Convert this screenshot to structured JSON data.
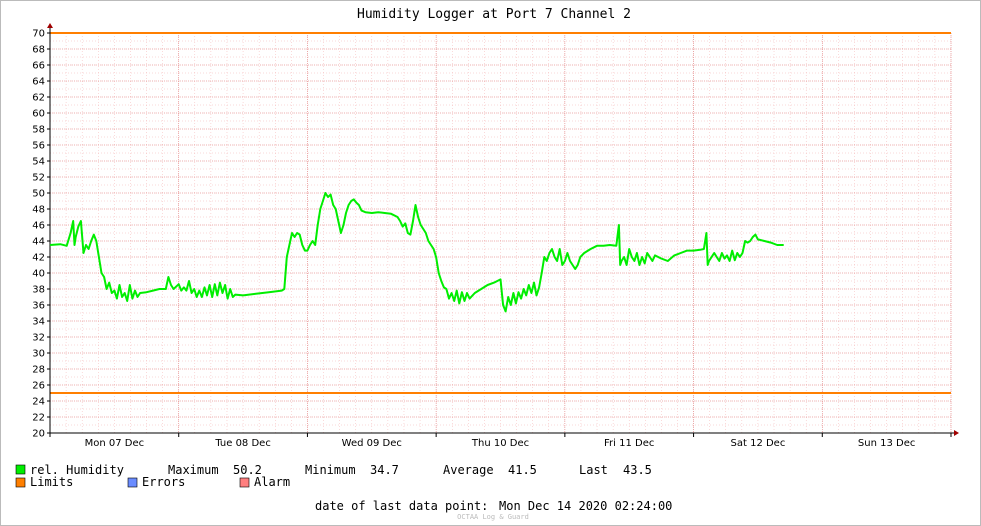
{
  "chart_data": {
    "type": "line",
    "title": "Humidity Logger at Port 7 Channel 2",
    "ylim": [
      20,
      70
    ],
    "y_ticks": [
      20,
      22,
      24,
      26,
      28,
      30,
      32,
      34,
      36,
      38,
      40,
      42,
      44,
      46,
      48,
      50,
      52,
      54,
      56,
      58,
      60,
      62,
      64,
      66,
      68,
      70
    ],
    "x_categories": [
      "Mon 07 Dec",
      "Tue 08 Dec",
      "Wed 09 Dec",
      "Thu 10 Dec",
      "Fri 11 Dec",
      "Sat 12 Dec",
      "Sun 13 Dec"
    ],
    "x_range_days": [
      0,
      7
    ],
    "grid": true,
    "limits": {
      "upper": 70,
      "lower": 25
    },
    "series": [
      {
        "name": "rel. Humidity",
        "color": "#00ee00",
        "points": [
          [
            0.0,
            43.5
          ],
          [
            0.08,
            43.6
          ],
          [
            0.13,
            43.4
          ],
          [
            0.16,
            45.0
          ],
          [
            0.18,
            46.5
          ],
          [
            0.19,
            43.5
          ],
          [
            0.2,
            44.5
          ],
          [
            0.22,
            45.8
          ],
          [
            0.24,
            46.5
          ],
          [
            0.26,
            42.5
          ],
          [
            0.28,
            43.5
          ],
          [
            0.3,
            43.0
          ],
          [
            0.32,
            44.0
          ],
          [
            0.34,
            44.8
          ],
          [
            0.36,
            44.0
          ],
          [
            0.38,
            42.0
          ],
          [
            0.4,
            40.0
          ],
          [
            0.42,
            39.5
          ],
          [
            0.44,
            38.0
          ],
          [
            0.46,
            38.8
          ],
          [
            0.48,
            37.5
          ],
          [
            0.5,
            37.8
          ],
          [
            0.52,
            36.8
          ],
          [
            0.54,
            38.5
          ],
          [
            0.56,
            37.0
          ],
          [
            0.58,
            37.5
          ],
          [
            0.6,
            36.5
          ],
          [
            0.62,
            38.5
          ],
          [
            0.64,
            36.8
          ],
          [
            0.66,
            37.8
          ],
          [
            0.68,
            37.0
          ],
          [
            0.7,
            37.5
          ],
          [
            0.75,
            37.6
          ],
          [
            0.8,
            37.8
          ],
          [
            0.85,
            38.0
          ],
          [
            0.9,
            38.0
          ],
          [
            0.92,
            39.5
          ],
          [
            0.94,
            38.5
          ],
          [
            0.96,
            38.0
          ],
          [
            1.0,
            38.6
          ],
          [
            1.02,
            37.8
          ],
          [
            1.04,
            38.2
          ],
          [
            1.06,
            37.8
          ],
          [
            1.08,
            39.0
          ],
          [
            1.1,
            37.5
          ],
          [
            1.12,
            38.0
          ],
          [
            1.14,
            37.0
          ],
          [
            1.16,
            37.8
          ],
          [
            1.18,
            37.0
          ],
          [
            1.2,
            38.2
          ],
          [
            1.22,
            37.2
          ],
          [
            1.24,
            38.5
          ],
          [
            1.26,
            37.0
          ],
          [
            1.28,
            38.6
          ],
          [
            1.3,
            37.2
          ],
          [
            1.32,
            38.8
          ],
          [
            1.34,
            37.5
          ],
          [
            1.36,
            38.5
          ],
          [
            1.38,
            36.8
          ],
          [
            1.4,
            38.0
          ],
          [
            1.42,
            37.0
          ],
          [
            1.44,
            37.3
          ],
          [
            1.5,
            37.2
          ],
          [
            1.6,
            37.4
          ],
          [
            1.7,
            37.6
          ],
          [
            1.8,
            37.8
          ],
          [
            1.82,
            38.0
          ],
          [
            1.84,
            42.0
          ],
          [
            1.86,
            43.5
          ],
          [
            1.88,
            45.0
          ],
          [
            1.9,
            44.5
          ],
          [
            1.92,
            45.0
          ],
          [
            1.94,
            44.8
          ],
          [
            1.96,
            43.5
          ],
          [
            1.98,
            42.8
          ],
          [
            2.0,
            42.8
          ],
          [
            2.02,
            43.5
          ],
          [
            2.04,
            44.0
          ],
          [
            2.06,
            43.5
          ],
          [
            2.08,
            46.0
          ],
          [
            2.1,
            48.0
          ],
          [
            2.12,
            49.0
          ],
          [
            2.14,
            50.0
          ],
          [
            2.16,
            49.5
          ],
          [
            2.18,
            49.8
          ],
          [
            2.2,
            48.5
          ],
          [
            2.22,
            48.0
          ],
          [
            2.24,
            46.5
          ],
          [
            2.26,
            45.0
          ],
          [
            2.28,
            46.0
          ],
          [
            2.3,
            47.5
          ],
          [
            2.32,
            48.5
          ],
          [
            2.34,
            49.0
          ],
          [
            2.36,
            49.2
          ],
          [
            2.38,
            48.8
          ],
          [
            2.4,
            48.5
          ],
          [
            2.42,
            47.8
          ],
          [
            2.45,
            47.6
          ],
          [
            2.5,
            47.5
          ],
          [
            2.55,
            47.6
          ],
          [
            2.6,
            47.5
          ],
          [
            2.65,
            47.4
          ],
          [
            2.7,
            47.0
          ],
          [
            2.72,
            46.5
          ],
          [
            2.74,
            45.8
          ],
          [
            2.76,
            46.2
          ],
          [
            2.78,
            45.0
          ],
          [
            2.8,
            44.8
          ],
          [
            2.82,
            46.5
          ],
          [
            2.84,
            48.5
          ],
          [
            2.86,
            47.0
          ],
          [
            2.88,
            46.0
          ],
          [
            2.9,
            45.5
          ],
          [
            2.92,
            45.0
          ],
          [
            2.94,
            44.0
          ],
          [
            2.96,
            43.5
          ],
          [
            2.98,
            43.0
          ],
          [
            3.0,
            42.0
          ],
          [
            3.02,
            40.0
          ],
          [
            3.04,
            39.0
          ],
          [
            3.06,
            38.2
          ],
          [
            3.08,
            38.0
          ],
          [
            3.1,
            36.8
          ],
          [
            3.12,
            37.5
          ],
          [
            3.14,
            36.5
          ],
          [
            3.16,
            37.8
          ],
          [
            3.18,
            36.2
          ],
          [
            3.2,
            37.6
          ],
          [
            3.22,
            36.5
          ],
          [
            3.24,
            37.5
          ],
          [
            3.26,
            36.8
          ],
          [
            3.3,
            37.5
          ],
          [
            3.35,
            38.0
          ],
          [
            3.4,
            38.5
          ],
          [
            3.45,
            38.8
          ],
          [
            3.5,
            39.2
          ],
          [
            3.52,
            36.0
          ],
          [
            3.54,
            35.2
          ],
          [
            3.56,
            37.0
          ],
          [
            3.58,
            36.0
          ],
          [
            3.6,
            37.5
          ],
          [
            3.62,
            36.2
          ],
          [
            3.64,
            37.6
          ],
          [
            3.66,
            36.8
          ],
          [
            3.68,
            38.0
          ],
          [
            3.7,
            37.2
          ],
          [
            3.72,
            38.5
          ],
          [
            3.74,
            37.5
          ],
          [
            3.76,
            38.8
          ],
          [
            3.78,
            37.2
          ],
          [
            3.8,
            38.2
          ],
          [
            3.82,
            40.0
          ],
          [
            3.84,
            42.0
          ],
          [
            3.86,
            41.5
          ],
          [
            3.88,
            42.5
          ],
          [
            3.9,
            43.0
          ],
          [
            3.92,
            42.0
          ],
          [
            3.94,
            41.5
          ],
          [
            3.96,
            43.0
          ],
          [
            3.98,
            41.0
          ],
          [
            4.0,
            41.5
          ],
          [
            4.02,
            42.5
          ],
          [
            4.04,
            41.5
          ],
          [
            4.06,
            41.0
          ],
          [
            4.08,
            40.5
          ],
          [
            4.1,
            41.0
          ],
          [
            4.12,
            42.0
          ],
          [
            4.15,
            42.5
          ],
          [
            4.2,
            43.0
          ],
          [
            4.25,
            43.4
          ],
          [
            4.3,
            43.4
          ],
          [
            4.35,
            43.5
          ],
          [
            4.4,
            43.4
          ],
          [
            4.42,
            46.0
          ],
          [
            4.43,
            41.0
          ],
          [
            4.44,
            41.5
          ],
          [
            4.46,
            42.0
          ],
          [
            4.48,
            41.0
          ],
          [
            4.5,
            43.0
          ],
          [
            4.52,
            42.0
          ],
          [
            4.54,
            41.5
          ],
          [
            4.56,
            42.5
          ],
          [
            4.58,
            41.0
          ],
          [
            4.6,
            42.0
          ],
          [
            4.62,
            41.2
          ],
          [
            4.64,
            42.5
          ],
          [
            4.66,
            42.0
          ],
          [
            4.68,
            41.5
          ],
          [
            4.7,
            42.2
          ],
          [
            4.75,
            41.8
          ],
          [
            4.8,
            41.5
          ],
          [
            4.85,
            42.2
          ],
          [
            4.9,
            42.5
          ],
          [
            4.95,
            42.8
          ],
          [
            5.0,
            42.8
          ],
          [
            5.05,
            42.9
          ],
          [
            5.08,
            43.0
          ],
          [
            5.1,
            45.0
          ],
          [
            5.11,
            41.0
          ],
          [
            5.12,
            41.5
          ],
          [
            5.14,
            42.0
          ],
          [
            5.16,
            42.5
          ],
          [
            5.18,
            42.0
          ],
          [
            5.2,
            41.5
          ],
          [
            5.22,
            42.5
          ],
          [
            5.24,
            41.8
          ],
          [
            5.26,
            42.2
          ],
          [
            5.28,
            41.5
          ],
          [
            5.3,
            42.8
          ],
          [
            5.32,
            41.6
          ],
          [
            5.34,
            42.5
          ],
          [
            5.36,
            42.0
          ],
          [
            5.38,
            42.5
          ],
          [
            5.4,
            44.0
          ],
          [
            5.42,
            43.8
          ],
          [
            5.44,
            44.0
          ],
          [
            5.46,
            44.5
          ],
          [
            5.48,
            44.8
          ],
          [
            5.5,
            44.2
          ],
          [
            5.55,
            44.0
          ],
          [
            5.6,
            43.8
          ],
          [
            5.65,
            43.5
          ],
          [
            5.7,
            43.5
          ]
        ]
      }
    ],
    "legend": {
      "humidity_label": "rel. Humidity",
      "limits_label": "Limits",
      "errors_label": "Errors",
      "alarm_label": "Alarm",
      "humidity_color": "#00ee00",
      "limits_color": "#ff7f00",
      "errors_color": "#6a8cff",
      "alarm_color": "#ff7f7f"
    },
    "stats": {
      "maximum_label": "Maximum",
      "maximum_value": "50.2",
      "minimum_label": "Minimum",
      "minimum_value": "34.7",
      "average_label": "Average",
      "average_value": "41.5",
      "last_label": "Last",
      "last_value": "43.5"
    },
    "footer": {
      "last_data_label": "date of last data point:",
      "last_data_value": "Mon Dec 14 2020 02:24:00",
      "watermark": "OCTAA Log & Guard"
    }
  }
}
